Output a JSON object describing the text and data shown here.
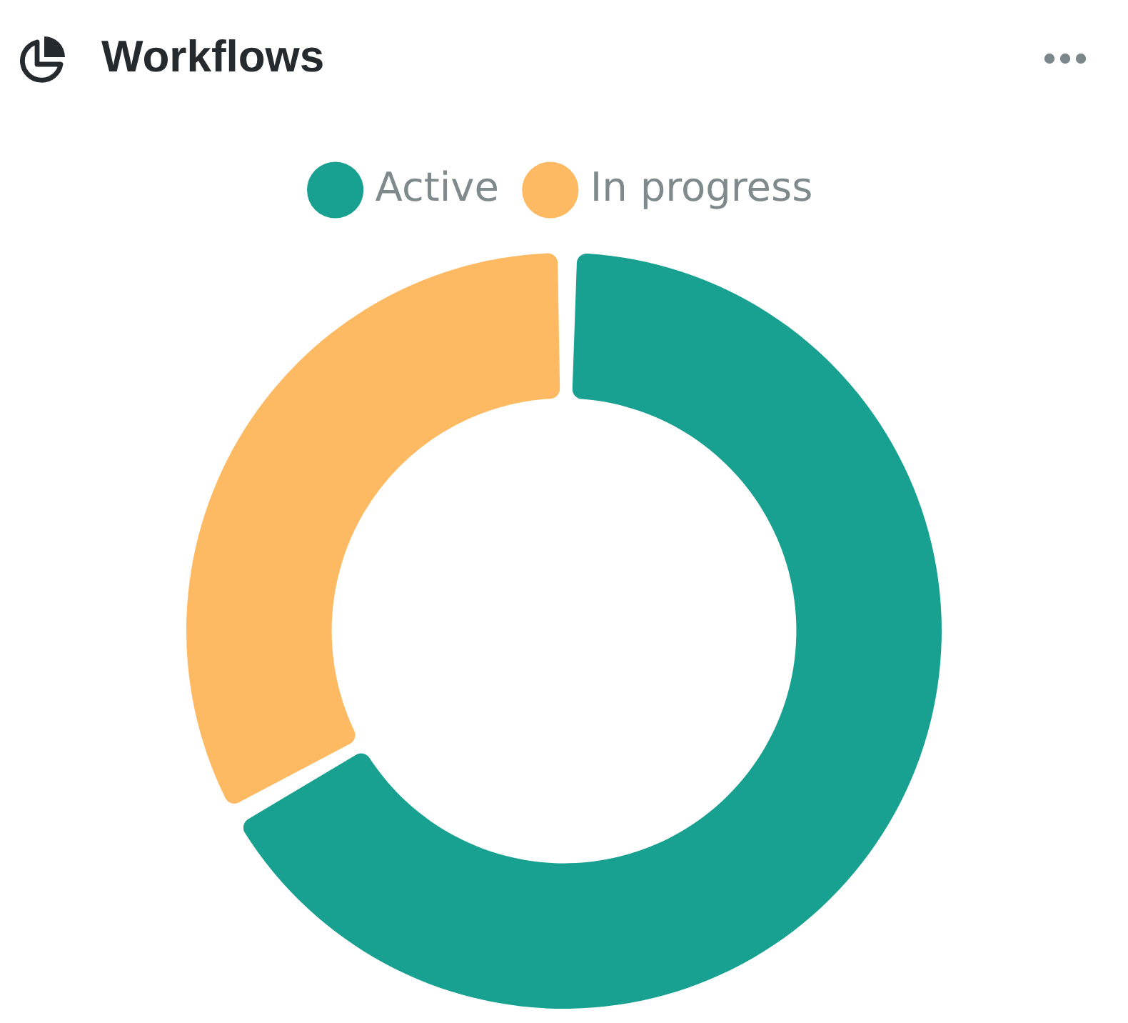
{
  "chart_data": {
    "type": "donut",
    "title": "Workflows",
    "categories": [
      "Active",
      "In progress"
    ],
    "values": [
      67,
      33
    ],
    "colors": [
      "#18a190",
      "#fdba63"
    ],
    "legend": "top"
  }
}
